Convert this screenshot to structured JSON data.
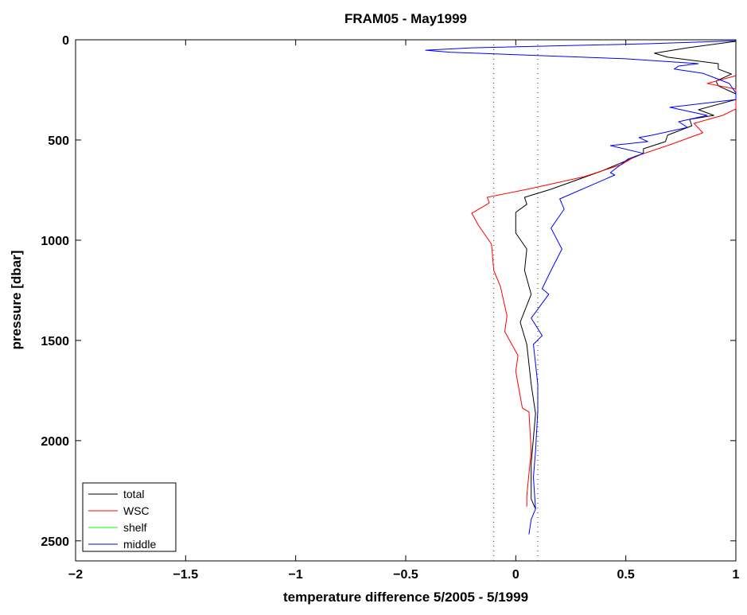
{
  "chart_data": {
    "type": "line",
    "title": "FRAM05 - May1999",
    "xlabel": "temperature difference 5/2005 - 5/1999",
    "ylabel": "pressure [dbar]",
    "xlim": [
      -2,
      1
    ],
    "ylim": [
      0,
      2600
    ],
    "y_reversed": true,
    "grid": false,
    "xticks": [
      -2,
      -1.5,
      -1,
      -0.5,
      0,
      0.5,
      1
    ],
    "xtick_labels": [
      "−2",
      "−1.5",
      "−1",
      "−0.5",
      "0",
      "0.5",
      "1"
    ],
    "yticks": [
      0,
      500,
      1000,
      1500,
      2000,
      2500
    ],
    "ytick_labels": [
      "0",
      "500",
      "1000",
      "1500",
      "2000",
      "2500"
    ],
    "reference_lines": [
      {
        "x": -0.1,
        "style": "dotted",
        "color": "#555555"
      },
      {
        "x": 0.1,
        "style": "dotted",
        "color": "#555555"
      }
    ],
    "legend_position": "bottom-left",
    "series": [
      {
        "name": "total",
        "color": "#000000",
        "points": [
          [
            1,
            8
          ],
          [
            0.78,
            40
          ],
          [
            0.63,
            67
          ],
          [
            0.69,
            87
          ],
          [
            0.92,
            119
          ],
          [
            0.92,
            146
          ],
          [
            0.98,
            171
          ],
          [
            0.91,
            206
          ],
          [
            0.92,
            230
          ],
          [
            1,
            270
          ],
          [
            1,
            298
          ],
          [
            0.83,
            349
          ],
          [
            0.9,
            377
          ],
          [
            0.79,
            397
          ],
          [
            0.8,
            429
          ],
          [
            0.69,
            476
          ],
          [
            0.68,
            508
          ],
          [
            0.58,
            544
          ],
          [
            0.58,
            567
          ],
          [
            0.52,
            595
          ],
          [
            0.39,
            655
          ],
          [
            0.16,
            746
          ],
          [
            0.04,
            786
          ],
          [
            0.05,
            821
          ],
          [
            0,
            861
          ],
          [
            0,
            964
          ],
          [
            0.05,
            1044
          ],
          [
            0.04,
            1151
          ],
          [
            0.07,
            1270
          ],
          [
            0.02,
            1409
          ],
          [
            0.05,
            1520
          ],
          [
            0.07,
            1718
          ],
          [
            0.09,
            1865
          ],
          [
            0.07,
            2115
          ],
          [
            0.07,
            2290
          ],
          [
            0.09,
            2341
          ]
        ]
      },
      {
        "name": "WSC",
        "color": "#ff0000",
        "points": [
          [
            1,
            179
          ],
          [
            0.87,
            218
          ],
          [
            1,
            246
          ],
          [
            1,
            345
          ],
          [
            0.94,
            377
          ],
          [
            0.81,
            417
          ],
          [
            0.85,
            464
          ],
          [
            0.7,
            524
          ],
          [
            0.54,
            583
          ],
          [
            0.48,
            623
          ],
          [
            0.31,
            683
          ],
          [
            0.07,
            742
          ],
          [
            -0.13,
            786
          ],
          [
            -0.12,
            813
          ],
          [
            -0.13,
            821
          ],
          [
            -0.2,
            865
          ],
          [
            -0.17,
            925
          ],
          [
            -0.11,
            1020
          ],
          [
            -0.1,
            1151
          ],
          [
            -0.07,
            1230
          ],
          [
            -0.04,
            1377
          ],
          [
            -0.05,
            1456
          ],
          [
            0.01,
            1575
          ],
          [
            0,
            1655
          ],
          [
            0.03,
            1837
          ],
          [
            0.06,
            1857
          ],
          [
            0.07,
            2052
          ],
          [
            0.05,
            2274
          ],
          [
            0.05,
            2329
          ]
        ]
      },
      {
        "name": "shelf",
        "color": "#00ff00",
        "points": []
      },
      {
        "name": "middle",
        "color": "#0000ff",
        "points": [
          [
            1,
            5
          ],
          [
            0.6,
            20
          ],
          [
            -0.2,
            40
          ],
          [
            -0.41,
            52
          ],
          [
            -0.3,
            62
          ],
          [
            0.5,
            95
          ],
          [
            0.83,
            119
          ],
          [
            0.74,
            131
          ],
          [
            0.72,
            146
          ],
          [
            0.85,
            167
          ],
          [
            0.97,
            218
          ],
          [
            1,
            265
          ],
          [
            1,
            298
          ],
          [
            0.7,
            337
          ],
          [
            0.87,
            377
          ],
          [
            0.74,
            409
          ],
          [
            0.78,
            437
          ],
          [
            0.62,
            476
          ],
          [
            0.56,
            488
          ],
          [
            0.6,
            508
          ],
          [
            0.43,
            528
          ],
          [
            0.58,
            567
          ],
          [
            0.51,
            595
          ],
          [
            0.43,
            663
          ],
          [
            0.45,
            675
          ],
          [
            0.2,
            794
          ],
          [
            0.22,
            845
          ],
          [
            0.16,
            940
          ],
          [
            0.21,
            1044
          ],
          [
            0.16,
            1151
          ],
          [
            0.12,
            1242
          ],
          [
            0.15,
            1270
          ],
          [
            0.07,
            1389
          ],
          [
            0.12,
            1476
          ],
          [
            0.08,
            1520
          ],
          [
            0.1,
            1718
          ],
          [
            0.1,
            1853
          ],
          [
            0.09,
            2052
          ],
          [
            0.08,
            2183
          ],
          [
            0.09,
            2341
          ],
          [
            0.07,
            2393
          ],
          [
            0.06,
            2468
          ]
        ]
      }
    ]
  }
}
